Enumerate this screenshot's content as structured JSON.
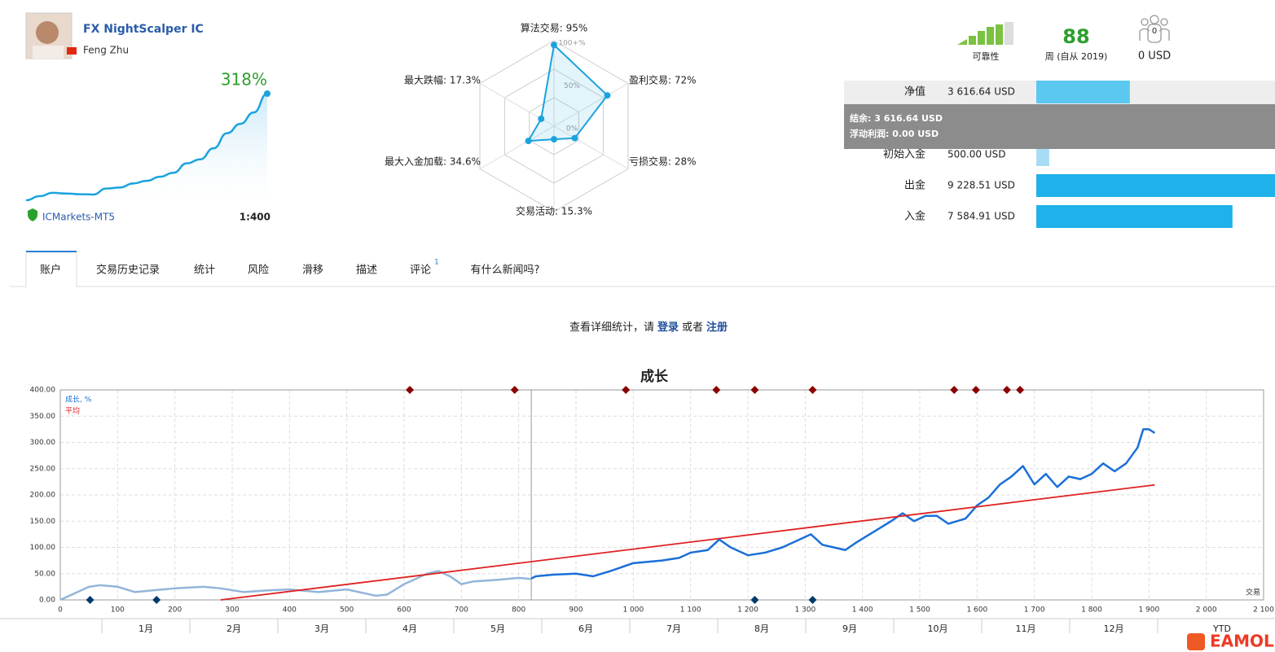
{
  "profile": {
    "name": "FX NightScalper IC",
    "author": "Feng Zhu",
    "growth": "318%",
    "broker": "ICMarkets-MT5",
    "leverage": "1:400"
  },
  "stats": {
    "reliability_label": "可靠性",
    "weeks": "88",
    "weeks_label": "周 (自从 2019)",
    "subscribers_badge": "0",
    "subscribers": "0 USD",
    "tooltip": [
      "结余: 3 616.64 USD",
      "浮动利润: 0.00 USD"
    ]
  },
  "tabs": [
    "账户",
    "交易历史记录",
    "统计",
    "风险",
    "滑移",
    "描述",
    "评论",
    "有什么新闻吗?"
  ],
  "tab_badge": "1",
  "login_prompt": {
    "text": "查看详细统计，请",
    "login": "登录",
    "or": "或者",
    "register": "注册"
  },
  "watermark": "EAMOL",
  "chart_data": [
    {
      "type": "sparkline",
      "color": "#1aa3dd",
      "values": [
        0,
        12,
        22,
        20,
        18,
        17,
        35,
        38,
        50,
        58,
        70,
        82,
        110,
        122,
        155,
        200,
        228,
        262,
        318
      ]
    },
    {
      "type": "radar",
      "color": "#1aa3dd",
      "values": [
        95,
        72,
        28,
        15.3,
        34.6,
        17.3
      ],
      "value_labels": [
        "算法交易: 95%",
        "盈利交易: 72%",
        "亏损交易: 28%",
        "交易活动: 15.3%",
        "最大入金加载: 34.6%",
        "最大跌幅: 17.3%"
      ],
      "rlim": [
        0,
        100
      ],
      "rticks": [
        {
          "value": 100,
          "label": "100+%"
        },
        {
          "value": 50,
          "label": "50%"
        },
        {
          "value": 0,
          "label": "0%"
        }
      ]
    },
    {
      "type": "hbar",
      "categories": [
        "净值",
        "初始入金",
        "出金",
        "入金"
      ],
      "values": [
        3616.64,
        500,
        9228.51,
        7584.91
      ],
      "value_labels": [
        "3 616.64 USD",
        "500.00 USD",
        "9 228.51 USD",
        "7 584.91 USD"
      ],
      "colors": [
        "#5bc8f0",
        "#a8dcf5",
        "#1eb1ea",
        "#1eb1ea"
      ]
    },
    {
      "type": "line",
      "title": "成长",
      "x_label": "交易",
      "grid": true,
      "xlim": [
        0,
        2100
      ],
      "ylim": [
        0,
        400
      ],
      "xticks": [
        0,
        100,
        200,
        300,
        400,
        500,
        600,
        700,
        800,
        900,
        {
          "value": 1000,
          "label": "1 000"
        },
        {
          "value": 1100,
          "label": "1 100"
        },
        {
          "value": 1200,
          "label": "1 200"
        },
        {
          "value": 1300,
          "label": "1 300"
        },
        {
          "value": 1400,
          "label": "1 400"
        },
        {
          "value": 1500,
          "label": "1 500"
        },
        {
          "value": 1600,
          "label": "1 600"
        },
        {
          "value": 1700,
          "label": "1 700"
        },
        {
          "value": 1800,
          "label": "1 800"
        },
        {
          "value": 1900,
          "label": "1 900"
        },
        {
          "value": 2000,
          "label": "2 000"
        },
        {
          "value": 2100,
          "label": "2 100"
        }
      ],
      "yticks": [
        {
          "value": 0,
          "label": "0.00"
        },
        {
          "value": 50,
          "label": "50.00"
        },
        {
          "value": 100,
          "label": "100.00"
        },
        {
          "value": 150,
          "label": "150.00"
        },
        {
          "value": 200,
          "label": "200.00"
        },
        {
          "value": 250,
          "label": "250.00"
        },
        {
          "value": 300,
          "label": "300.00"
        },
        {
          "value": 350,
          "label": "350.00"
        },
        {
          "value": 400,
          "label": "400.00"
        }
      ],
      "divider_x": 822,
      "series": [
        {
          "name": "成长, %",
          "color": "#1a6fd8",
          "early_color": "#93b5d9",
          "x": [
            0,
            30,
            50,
            70,
            100,
            130,
            160,
            200,
            250,
            280,
            320,
            360,
            400,
            450,
            500,
            550,
            570,
            600,
            620,
            640,
            660,
            680,
            700,
            720,
            760,
            800,
            820,
            830,
            860,
            900,
            930,
            960,
            1000,
            1050,
            1080,
            1100,
            1130,
            1150,
            1170,
            1200,
            1230,
            1260,
            1290,
            1310,
            1330,
            1350,
            1370,
            1390,
            1420,
            1450,
            1470,
            1490,
            1510,
            1530,
            1550,
            1580,
            1600,
            1620,
            1640,
            1660,
            1680,
            1700,
            1720,
            1740,
            1760,
            1780,
            1800,
            1820,
            1840,
            1860,
            1880,
            1890,
            1900,
            1910
          ],
          "values": [
            0,
            15,
            25,
            28,
            25,
            15,
            18,
            22,
            25,
            22,
            15,
            18,
            20,
            15,
            20,
            8,
            10,
            30,
            40,
            50,
            55,
            45,
            30,
            35,
            38,
            42,
            40,
            45,
            48,
            50,
            45,
            55,
            70,
            75,
            80,
            90,
            95,
            115,
            100,
            85,
            90,
            100,
            115,
            125,
            105,
            100,
            95,
            110,
            130,
            150,
            165,
            150,
            160,
            160,
            145,
            155,
            180,
            195,
            220,
            235,
            255,
            220,
            240,
            215,
            235,
            230,
            240,
            260,
            245,
            260,
            290,
            325,
            325,
            318
          ]
        },
        {
          "name": "平均",
          "color": "#e02020",
          "x": [
            280,
            1910
          ],
          "values": [
            0,
            219
          ]
        }
      ],
      "top_markers": [
        610,
        793,
        987,
        1145,
        1212,
        1313,
        1560,
        1598,
        1652,
        1675
      ],
      "bottom_markers": [
        52,
        168,
        1212,
        1313
      ],
      "months": [
        "1月",
        "2月",
        "3月",
        "4月",
        "5月",
        "6月",
        "7月",
        "8月",
        "9月",
        "10月",
        "11月",
        "12月"
      ],
      "period_label": "YTD"
    }
  ]
}
